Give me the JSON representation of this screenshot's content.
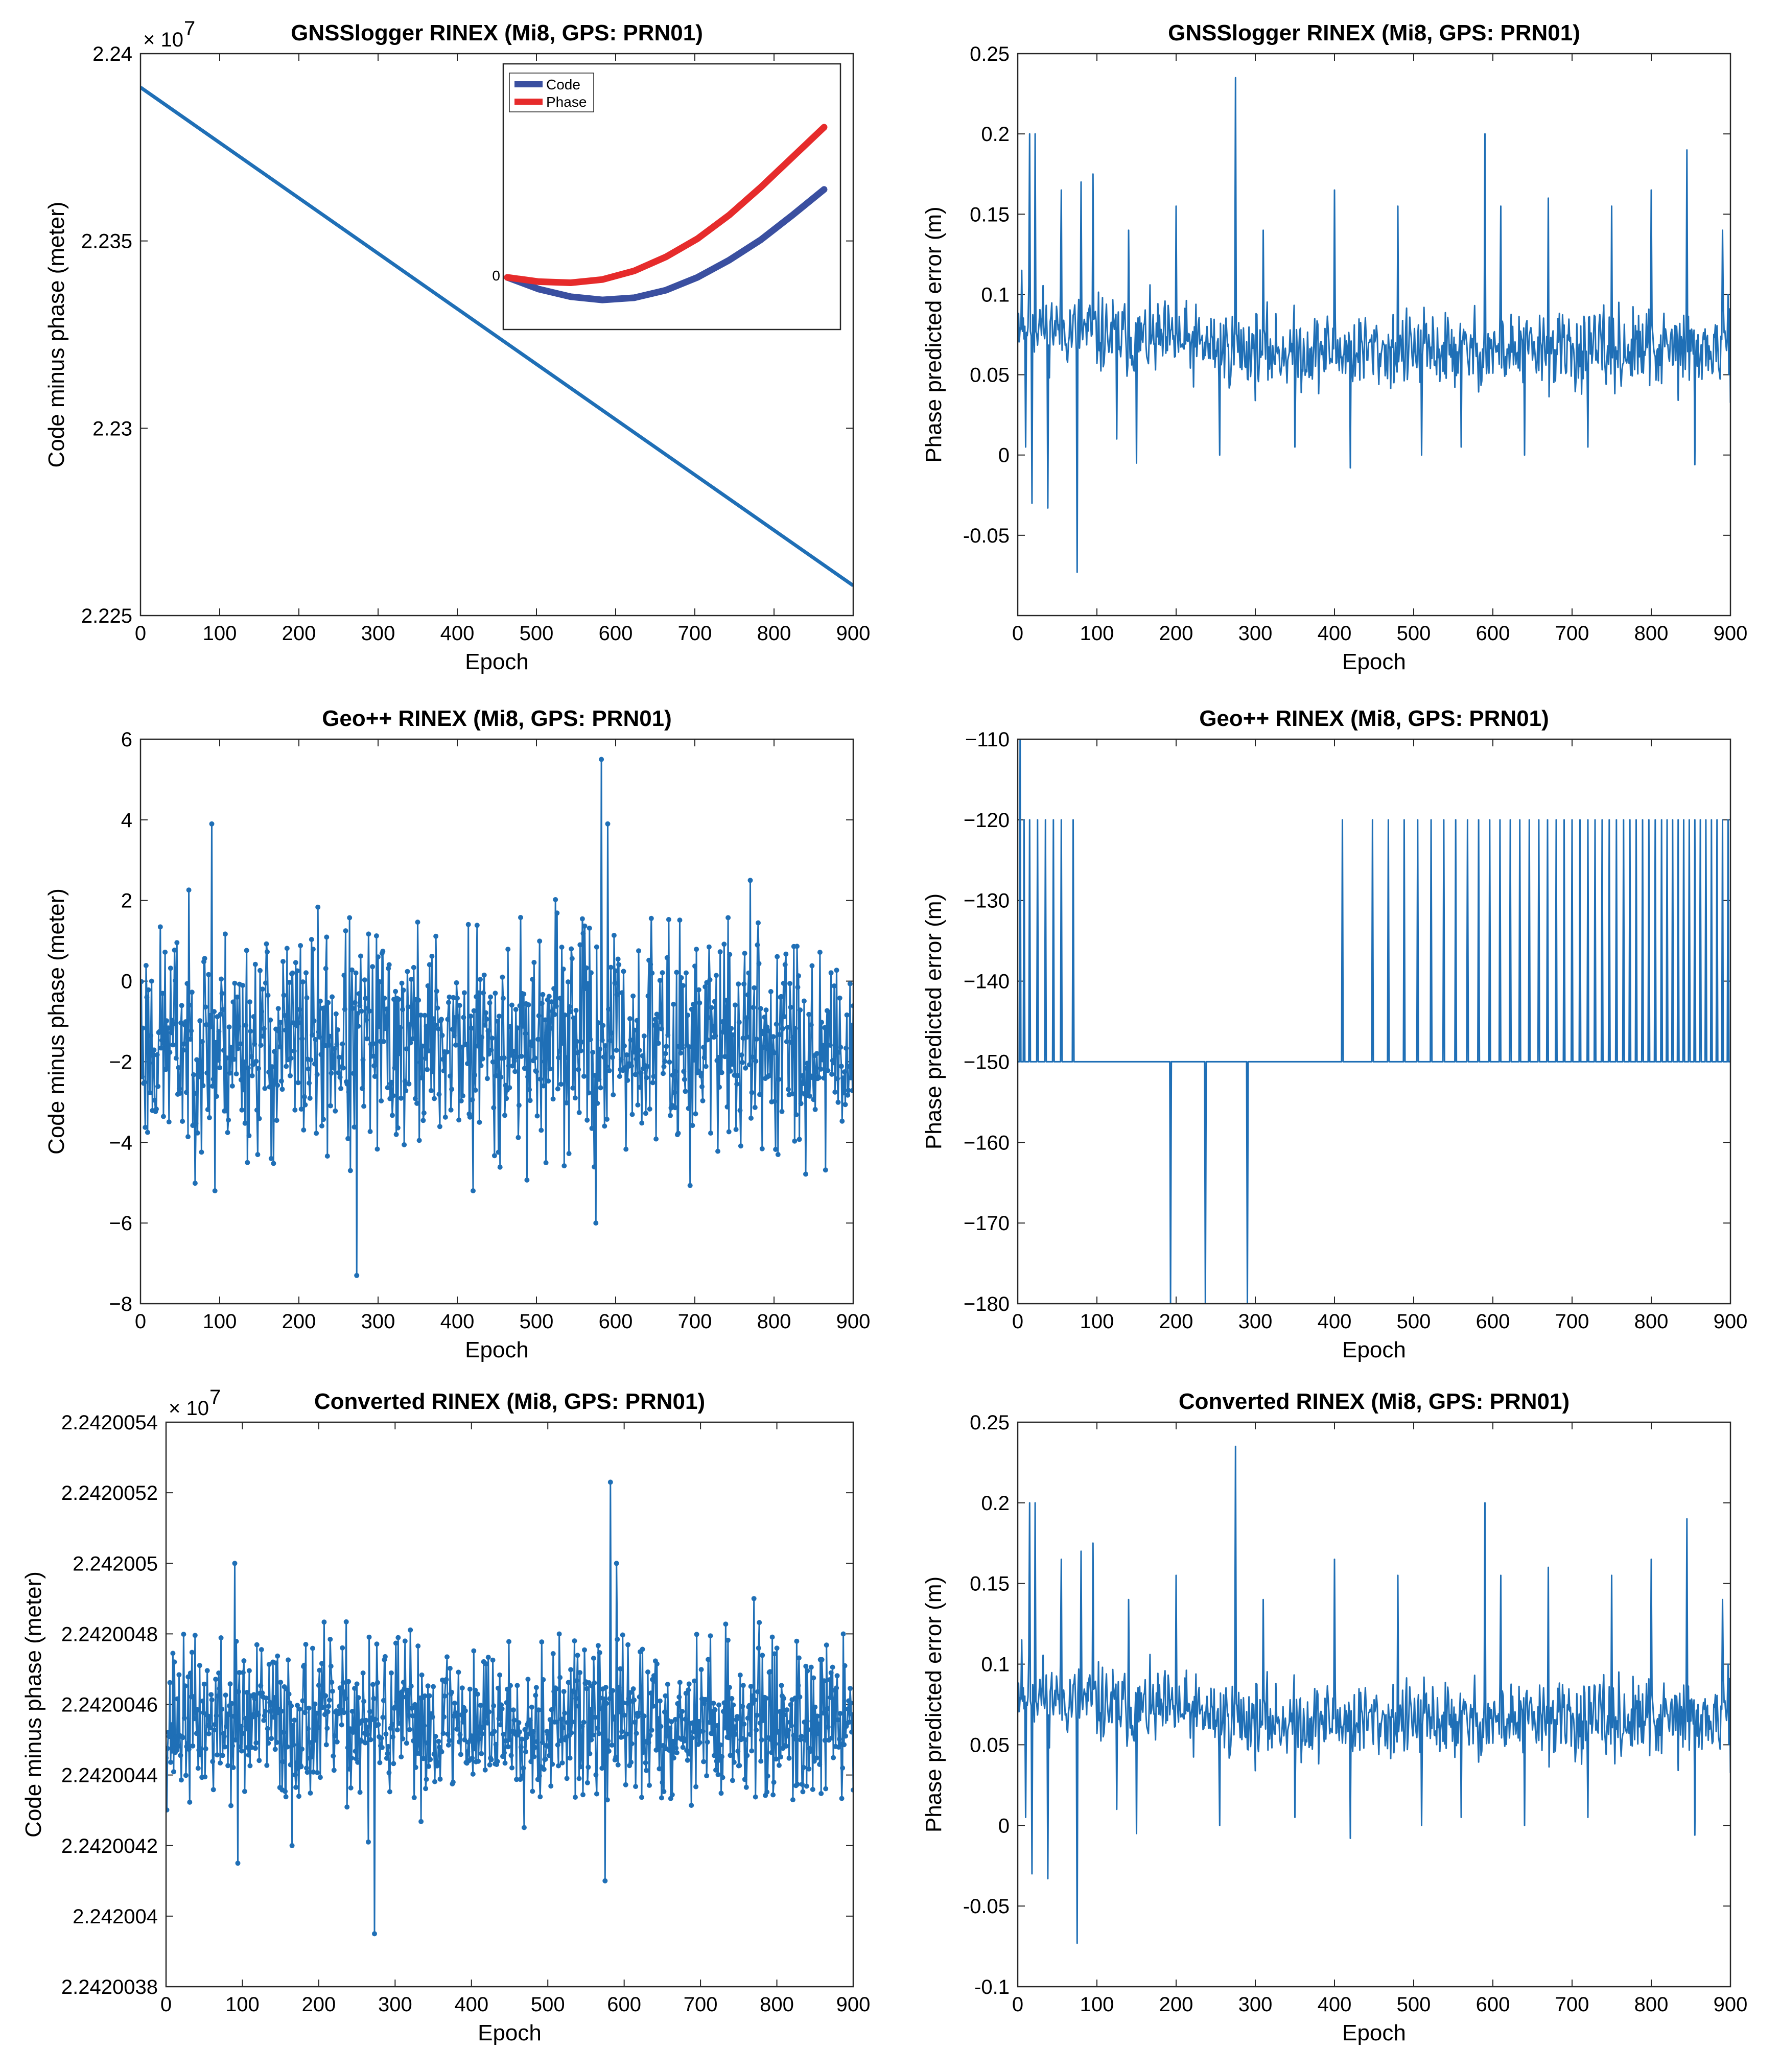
{
  "chart_data": [
    {
      "type": "line",
      "title": "GNSSlogger RINEX (Mi8, GPS: PRN01)",
      "xlabel": "Epoch",
      "ylabel": "Code minus phase (meter)",
      "xlim": [
        0,
        900
      ],
      "ylim": [
        22250000,
        22400000
      ],
      "xticks": [
        0,
        100,
        200,
        300,
        400,
        500,
        600,
        700,
        800,
        900
      ],
      "xticklabels": [
        "0",
        "100",
        "200",
        "300",
        "400",
        "500",
        "600",
        "700",
        "800",
        "900"
      ],
      "yticks": [
        22250000,
        22300000,
        22350000,
        22400000
      ],
      "yticklabels": [
        "2.225",
        "2.23",
        "2.235",
        "2.24"
      ],
      "exponent_label": "× 10",
      "exponent_power": "7",
      "markers": false,
      "series": [
        {
          "name": "Code minus phase",
          "color": "#1f6fb6",
          "x": [
            0,
            900
          ],
          "y": [
            22391000,
            22258000
          ]
        }
      ],
      "inset": {
        "zero_label": "0",
        "legend": [
          "Code",
          "Phase"
        ],
        "series": [
          {
            "name": "Code",
            "color": "#3a4fa0",
            "x": [
              0,
              0.1,
              0.2,
              0.3,
              0.4,
              0.5,
              0.6,
              0.7,
              0.8,
              0.9,
              1.0
            ],
            "y": [
              0,
              -0.055,
              -0.09,
              -0.105,
              -0.095,
              -0.06,
              0.0,
              0.08,
              0.175,
              0.29,
              0.41
            ]
          },
          {
            "name": "Phase",
            "color": "#e62b2b",
            "x": [
              0,
              0.1,
              0.2,
              0.3,
              0.4,
              0.5,
              0.6,
              0.7,
              0.8,
              0.9,
              1.0
            ],
            "y": [
              0,
              -0.02,
              -0.025,
              -0.01,
              0.03,
              0.095,
              0.18,
              0.29,
              0.42,
              0.56,
              0.7
            ]
          }
        ]
      }
    },
    {
      "type": "line",
      "title": "GNSSlogger RINEX (Mi8, GPS: PRN01)",
      "xlabel": "Epoch",
      "ylabel": "Phase predicted error (m)",
      "xlim": [
        0,
        900
      ],
      "ylim": [
        -0.1,
        0.25
      ],
      "xticks": [
        0,
        100,
        200,
        300,
        400,
        500,
        600,
        700,
        800,
        900
      ],
      "xticklabels": [
        "0",
        "100",
        "200",
        "300",
        "400",
        "500",
        "600",
        "700",
        "800",
        "900"
      ],
      "yticks": [
        -0.05,
        0,
        0.05,
        0.1,
        0.15,
        0.2,
        0.25
      ],
      "yticklabels": [
        "-0.05",
        "0",
        "0.05",
        "0.1",
        "0.15",
        "0.2",
        "0.25"
      ],
      "markers": false,
      "series": [
        {
          "name": "Phase predicted error",
          "color": "#1f6fb6",
          "generator": "noise",
          "baseline": [
            [
              0,
              0.085
            ],
            [
              100,
              0.075
            ],
            [
              300,
              0.065
            ],
            [
              900,
              0.065
            ]
          ],
          "noise": 0.012,
          "seed": 11,
          "spikes": [
            [
              5,
              0.115
            ],
            [
              10,
              0.005
            ],
            [
              15,
              0.2
            ],
            [
              18,
              -0.03
            ],
            [
              22,
              0.2
            ],
            [
              38,
              -0.033
            ],
            [
              55,
              0.165
            ],
            [
              75,
              -0.073
            ],
            [
              80,
              0.17
            ],
            [
              95,
              0.175
            ],
            [
              125,
              0.01
            ],
            [
              140,
              0.14
            ],
            [
              150,
              -0.005
            ],
            [
              200,
              0.155
            ],
            [
              255,
              0.0
            ],
            [
              275,
              0.235
            ],
            [
              310,
              0.14
            ],
            [
              350,
              0.005
            ],
            [
              400,
              0.165
            ],
            [
              420,
              -0.008
            ],
            [
              480,
              0.155
            ],
            [
              510,
              0.0
            ],
            [
              560,
              0.005
            ],
            [
              590,
              0.2
            ],
            [
              610,
              0.155
            ],
            [
              640,
              0.0
            ],
            [
              670,
              0.16
            ],
            [
              720,
              0.005
            ],
            [
              750,
              0.155
            ],
            [
              800,
              0.165
            ],
            [
              845,
              0.19
            ],
            [
              855,
              -0.006
            ],
            [
              890,
              0.14
            ]
          ],
          "y_min": -0.1,
          "y_max": 0.25
        }
      ]
    },
    {
      "type": "line",
      "title": "Geo++ RINEX (Mi8, GPS: PRN01)",
      "xlabel": "Epoch",
      "ylabel": "Code minus phase (meter)",
      "xlim": [
        0,
        900
      ],
      "ylim": [
        -8,
        6
      ],
      "xticks": [
        0,
        100,
        200,
        300,
        400,
        500,
        600,
        700,
        800,
        900
      ],
      "xticklabels": [
        "0",
        "100",
        "200",
        "300",
        "400",
        "500",
        "600",
        "700",
        "800",
        "900"
      ],
      "yticks": [
        -8,
        -6,
        -4,
        -2,
        0,
        2,
        4,
        6
      ],
      "yticklabels": [
        "−8",
        "−6",
        "−4",
        "−2",
        "0",
        "2",
        "4",
        "6"
      ],
      "markers": true,
      "series": [
        {
          "name": "Code minus phase",
          "color": "#1f6fb6",
          "generator": "noise",
          "baseline": [
            [
              0,
              -1.5
            ],
            [
              900,
              -1.5
            ]
          ],
          "noise": 1.35,
          "seed": 23,
          "spikes": [
            [
              90,
              3.9
            ],
            [
              94,
              -5.2
            ],
            [
              165,
              -4.4
            ],
            [
              265,
              -4.7
            ],
            [
              273,
              -7.3
            ],
            [
              420,
              -5.2
            ],
            [
              555,
              0.9
            ],
            [
              575,
              -6.0
            ],
            [
              582,
              5.5
            ],
            [
              590,
              3.9
            ],
            [
              770,
              2.5
            ],
            [
              805,
              -4.3
            ]
          ],
          "y_min": -8,
          "y_max": 6
        }
      ]
    },
    {
      "type": "line",
      "title": "Geo++ RINEX (Mi8, GPS: PRN01)",
      "xlabel": "Epoch",
      "ylabel": "Phase predicted error (m)",
      "xlim": [
        0,
        900
      ],
      "ylim": [
        -180,
        -110
      ],
      "xticks": [
        0,
        100,
        200,
        300,
        400,
        500,
        600,
        700,
        800,
        900
      ],
      "xticklabels": [
        "0",
        "100",
        "200",
        "300",
        "400",
        "500",
        "600",
        "700",
        "800",
        "900"
      ],
      "yticks": [
        -180,
        -170,
        -160,
        -150,
        -140,
        -130,
        -120,
        -110
      ],
      "yticklabels": [
        "−180",
        "−170",
        "−160",
        "−150",
        "−140",
        "−130",
        "−120",
        "−110"
      ],
      "markers": false,
      "series": [
        {
          "name": "Phase predicted error",
          "color": "#1f6fb6",
          "generator": "steps",
          "base": -150,
          "up_value": -120,
          "down_value": -180,
          "first_spike": [
            3,
            -110
          ],
          "up_spikes": [
            8,
            15,
            25,
            35,
            45,
            55,
            70,
            410,
            448,
            468,
            488,
            505,
            522,
            538,
            553,
            568,
            582,
            596,
            609,
            622,
            634,
            646,
            658,
            669,
            680,
            690,
            700,
            710,
            720,
            729,
            738,
            747,
            756,
            765,
            773,
            781,
            789,
            797,
            805,
            813,
            820,
            827,
            834,
            841,
            848,
            855,
            862,
            869,
            876,
            883,
            890,
            897
          ],
          "down_spikes": [
            193,
            237,
            290
          ]
        }
      ]
    },
    {
      "type": "line",
      "title": "Converted RINEX (Mi8, GPS: PRN01)",
      "xlabel": "Epoch",
      "ylabel": "Code minus phase (meter)",
      "xlim": [
        0,
        900
      ],
      "ylim": [
        2.2420038,
        2.2420054
      ],
      "xticks": [
        0,
        100,
        200,
        300,
        400,
        500,
        600,
        700,
        800,
        900
      ],
      "xticklabels": [
        "0",
        "100",
        "200",
        "300",
        "400",
        "500",
        "600",
        "700",
        "800",
        "900"
      ],
      "yticks": [
        2.2420038,
        2.242004,
        2.2420042,
        2.2420044,
        2.2420046,
        2.2420048,
        2.242005,
        2.2420052,
        2.2420054
      ],
      "yticklabels": [
        "2.2420038",
        "2.242004",
        "2.2420042",
        "2.2420044",
        "2.2420046",
        "2.2420048",
        "2.242005",
        "2.2420052",
        "2.2420054"
      ],
      "exponent_label": "× 10",
      "exponent_power": "7",
      "markers": true,
      "series": [
        {
          "name": "Code minus phase",
          "color": "#1f6fb6",
          "generator": "noise",
          "baseline": [
            [
              0,
              2.24200455
            ],
            [
              900,
              2.24200455
            ]
          ],
          "noise": 1.1e-07,
          "seed": 37,
          "spikes": [
            [
              90,
              2.242005
            ],
            [
              94,
              2.24200415
            ],
            [
              165,
              2.2420042
            ],
            [
              265,
              2.24200421
            ],
            [
              273,
              2.24200395
            ],
            [
              575,
              2.2420041
            ],
            [
              582,
              2.24200523
            ],
            [
              590,
              2.242005
            ],
            [
              770,
              2.2420049
            ]
          ],
          "y_min": 2.2420038,
          "y_max": 2.2420054
        }
      ]
    },
    {
      "type": "line",
      "title": "Converted RINEX (Mi8, GPS: PRN01)",
      "xlabel": "Epoch",
      "ylabel": "Phase predicted error (m)",
      "xlim": [
        0,
        900
      ],
      "ylim": [
        -0.1,
        0.25
      ],
      "xticks": [
        0,
        100,
        200,
        300,
        400,
        500,
        600,
        700,
        800,
        900
      ],
      "xticklabels": [
        "0",
        "100",
        "200",
        "300",
        "400",
        "500",
        "600",
        "700",
        "800",
        "900"
      ],
      "yticks": [
        -0.1,
        -0.05,
        0,
        0.05,
        0.1,
        0.15,
        0.2,
        0.25
      ],
      "yticklabels": [
        "-0.1",
        "-0.05",
        "0",
        "0.05",
        "0.1",
        "0.15",
        "0.2",
        "0.25"
      ],
      "markers": false,
      "series": [
        {
          "name": "Phase predicted error",
          "color": "#1f6fb6",
          "generator": "noise",
          "baseline": [
            [
              0,
              0.085
            ],
            [
              100,
              0.075
            ],
            [
              300,
              0.065
            ],
            [
              900,
              0.065
            ]
          ],
          "noise": 0.012,
          "seed": 11,
          "spikes": [
            [
              5,
              0.115
            ],
            [
              10,
              0.005
            ],
            [
              15,
              0.2
            ],
            [
              18,
              -0.03
            ],
            [
              22,
              0.2
            ],
            [
              38,
              -0.033
            ],
            [
              55,
              0.165
            ],
            [
              75,
              -0.073
            ],
            [
              80,
              0.17
            ],
            [
              95,
              0.175
            ],
            [
              125,
              0.01
            ],
            [
              140,
              0.14
            ],
            [
              150,
              -0.005
            ],
            [
              200,
              0.155
            ],
            [
              255,
              0.0
            ],
            [
              275,
              0.235
            ],
            [
              310,
              0.14
            ],
            [
              350,
              0.005
            ],
            [
              400,
              0.165
            ],
            [
              420,
              -0.008
            ],
            [
              480,
              0.155
            ],
            [
              510,
              0.0
            ],
            [
              560,
              0.005
            ],
            [
              590,
              0.2
            ],
            [
              610,
              0.155
            ],
            [
              640,
              0.0
            ],
            [
              670,
              0.16
            ],
            [
              720,
              0.005
            ],
            [
              750,
              0.155
            ],
            [
              800,
              0.165
            ],
            [
              845,
              0.19
            ],
            [
              855,
              -0.006
            ],
            [
              890,
              0.14
            ]
          ],
          "y_min": -0.1,
          "y_max": 0.25
        }
      ]
    }
  ]
}
